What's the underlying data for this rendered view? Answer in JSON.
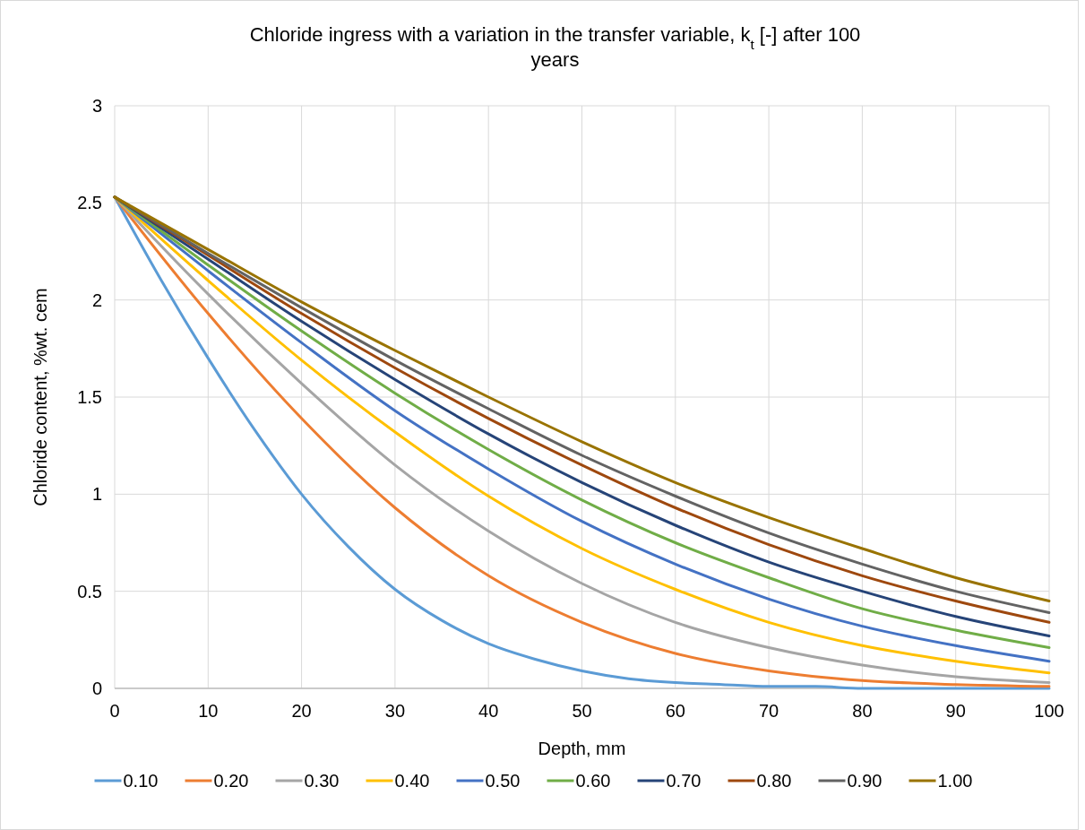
{
  "chart_data": {
    "type": "line",
    "title": "Chloride ingress with a variation in the transfer variable, k$_{t}$ [-] after 100 years",
    "xlabel": "Depth, mm",
    "ylabel": "Chloride content, %wt. cem",
    "x": [
      0,
      10,
      20,
      30,
      40,
      50,
      60,
      70,
      80,
      90,
      100
    ],
    "xlim": [
      0,
      100
    ],
    "xticks": [
      0,
      10,
      20,
      30,
      40,
      50,
      60,
      70,
      80,
      90,
      100
    ],
    "ylim": [
      0,
      3
    ],
    "yticks": [
      0,
      0.5,
      1,
      1.5,
      2,
      2.5,
      3
    ],
    "grid": true,
    "legend": "bottom",
    "marker": "none",
    "line_style": "solid",
    "series": [
      {
        "name": "0.10",
        "color": "#5b9bd5",
        "x": [
          0,
          5,
          10,
          15,
          20,
          25,
          30,
          35,
          40,
          45,
          50,
          55,
          60,
          65,
          70,
          75,
          80,
          85,
          90,
          95,
          100
        ],
        "values": [
          2.53,
          2.1,
          1.7,
          1.33,
          1.0,
          0.73,
          0.51,
          0.35,
          0.23,
          0.15,
          0.09,
          0.05,
          0.03,
          0.02,
          0.01,
          0.01,
          0,
          0,
          0,
          0,
          0
        ]
      },
      {
        "name": "0.20",
        "color": "#ed7d31",
        "values": [
          2.53,
          1.93,
          1.39,
          0.93,
          0.58,
          0.34,
          0.18,
          0.09,
          0.04,
          0.02,
          0.01
        ]
      },
      {
        "name": "0.30",
        "color": "#a5a5a5",
        "values": [
          2.53,
          2.03,
          1.57,
          1.15,
          0.81,
          0.54,
          0.34,
          0.21,
          0.12,
          0.06,
          0.03
        ]
      },
      {
        "name": "0.40",
        "color": "#ffc000",
        "values": [
          2.53,
          2.1,
          1.69,
          1.32,
          0.99,
          0.72,
          0.51,
          0.34,
          0.22,
          0.14,
          0.08
        ]
      },
      {
        "name": "0.50",
        "color": "#4472c4",
        "values": [
          2.53,
          2.15,
          1.78,
          1.43,
          1.13,
          0.86,
          0.64,
          0.46,
          0.32,
          0.22,
          0.14
        ]
      },
      {
        "name": "0.60",
        "color": "#70ad47",
        "values": [
          2.53,
          2.18,
          1.84,
          1.52,
          1.23,
          0.97,
          0.75,
          0.57,
          0.41,
          0.3,
          0.21
        ]
      },
      {
        "name": "0.70",
        "color": "#264478",
        "values": [
          2.53,
          2.21,
          1.89,
          1.59,
          1.31,
          1.06,
          0.84,
          0.65,
          0.5,
          0.37,
          0.27
        ]
      },
      {
        "name": "0.80",
        "color": "#9e480e",
        "values": [
          2.53,
          2.23,
          1.93,
          1.65,
          1.39,
          1.15,
          0.93,
          0.74,
          0.58,
          0.45,
          0.34
        ]
      },
      {
        "name": "0.90",
        "color": "#636363",
        "values": [
          2.53,
          2.24,
          1.96,
          1.69,
          1.44,
          1.2,
          0.99,
          0.8,
          0.64,
          0.5,
          0.39
        ]
      },
      {
        "name": "1.00",
        "color": "#997300",
        "values": [
          2.53,
          2.26,
          1.99,
          1.74,
          1.5,
          1.27,
          1.06,
          0.88,
          0.72,
          0.57,
          0.45
        ]
      }
    ]
  }
}
